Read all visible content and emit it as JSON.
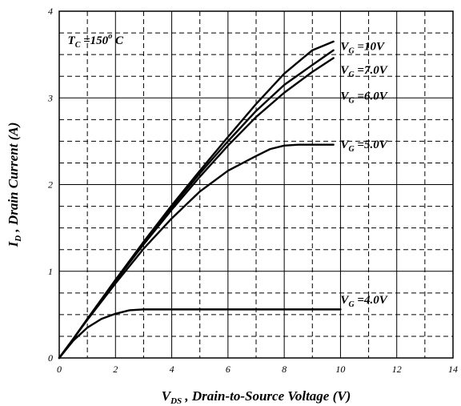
{
  "chart_data": {
    "type": "line",
    "xlabel": "V DS , Drain-to-Source Voltage (V)",
    "xlabel_main": "V",
    "xlabel_sub": "DS",
    "xlabel_rest": " , Drain-to-Source Voltage (V)",
    "ylabel": "I D , Drain Current (A)",
    "ylabel_main": "I",
    "ylabel_sub": "D",
    "ylabel_rest": " , Drain Current (A)",
    "xlim": [
      0,
      14
    ],
    "ylim": [
      0,
      4
    ],
    "x_ticks": [
      0,
      2,
      4,
      6,
      8,
      10,
      12,
      14
    ],
    "y_ticks": [
      0,
      1,
      2,
      3,
      4
    ],
    "x_minor_step": 1,
    "y_minor_step": 0.25,
    "grid": true,
    "annotations": [
      {
        "id": "tc",
        "text": "T C =150° C",
        "main": "T",
        "sub": "C",
        "rest": " =150",
        "sup": "o",
        "tail": " C",
        "x": 0.3,
        "y": 3.62
      },
      {
        "id": "vg10",
        "text": "V G =10V",
        "main": "V",
        "sub": "G",
        "rest": " =10V",
        "x": 10.0,
        "y": 3.55
      },
      {
        "id": "vg7",
        "text": "V G =7.0V",
        "main": "V",
        "sub": "G",
        "rest": " =7.0V",
        "x": 10.0,
        "y": 3.28
      },
      {
        "id": "vg6",
        "text": "V G =6.0V",
        "main": "V",
        "sub": "G",
        "rest": " =6.0V",
        "x": 10.0,
        "y": 2.98
      },
      {
        "id": "vg5",
        "text": "V G =5.0V",
        "main": "V",
        "sub": "G",
        "rest": " =5.0V",
        "x": 10.0,
        "y": 2.42
      },
      {
        "id": "vg4",
        "text": "V G =4.0V",
        "main": "V",
        "sub": "G",
        "rest": " =4.0V",
        "x": 10.0,
        "y": 0.63
      }
    ],
    "series": [
      {
        "name": "VG=10V",
        "x": [
          0,
          0.5,
          1,
          2,
          3,
          4,
          5,
          6,
          7,
          8,
          9,
          9.75
        ],
        "y": [
          0,
          0.22,
          0.45,
          0.9,
          1.34,
          1.76,
          2.16,
          2.55,
          2.93,
          3.28,
          3.55,
          3.65
        ]
      },
      {
        "name": "VG=7.0V",
        "x": [
          0,
          0.5,
          1,
          2,
          3,
          4,
          5,
          6,
          7,
          8,
          9,
          9.75
        ],
        "y": [
          0,
          0.22,
          0.45,
          0.9,
          1.33,
          1.74,
          2.13,
          2.5,
          2.85,
          3.15,
          3.38,
          3.55
        ]
      },
      {
        "name": "VG=6.0V",
        "x": [
          0,
          0.5,
          1,
          2,
          3,
          4,
          5,
          6,
          7,
          8,
          9,
          9.75
        ],
        "y": [
          0,
          0.22,
          0.45,
          0.89,
          1.31,
          1.71,
          2.09,
          2.45,
          2.78,
          3.06,
          3.3,
          3.46
        ]
      },
      {
        "name": "VG=5.0V",
        "x": [
          0,
          0.5,
          1,
          2,
          3,
          4,
          5,
          6,
          7,
          7.5,
          8,
          8.5,
          9,
          9.75
        ],
        "y": [
          0,
          0.22,
          0.44,
          0.86,
          1.26,
          1.61,
          1.92,
          2.16,
          2.33,
          2.41,
          2.45,
          2.46,
          2.46,
          2.46
        ]
      },
      {
        "name": "VG=4.0V",
        "x": [
          0,
          0.5,
          1,
          1.5,
          2,
          2.5,
          3,
          4,
          6,
          8,
          10
        ],
        "y": [
          0,
          0.2,
          0.35,
          0.45,
          0.51,
          0.55,
          0.56,
          0.56,
          0.56,
          0.56,
          0.56
        ]
      }
    ]
  }
}
